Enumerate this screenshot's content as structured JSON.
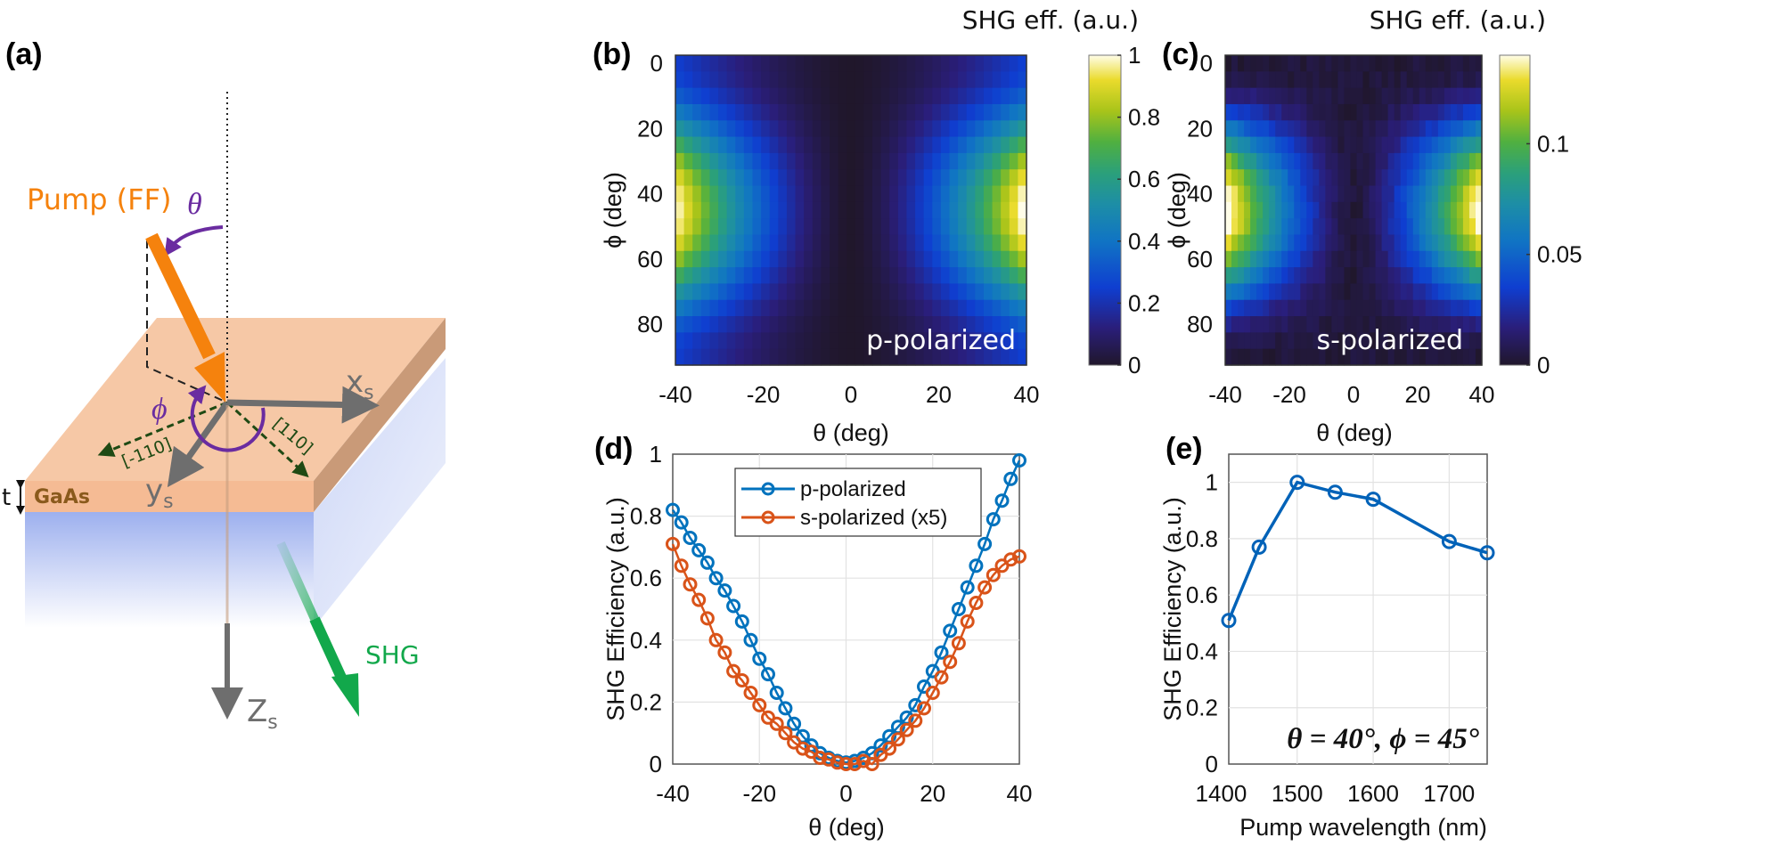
{
  "figure": {
    "panel_labels": [
      "(a)",
      "(b)",
      "(c)",
      "(d)",
      "(e)"
    ]
  },
  "diagram": {
    "pump_label": "Pump (FF)",
    "theta_symbol": "θ",
    "phi_symbol": "ϕ",
    "x_axis": "x",
    "x_sub": "s",
    "y_axis": "y",
    "y_sub": "s",
    "z_axis": "Z",
    "z_sub": "s",
    "dir_110": "[110]",
    "dir_m110": "[-110]",
    "material": "GaAs",
    "thickness": "t",
    "shg_label": "SHG",
    "colors": {
      "pump": "#f5820d",
      "shg": "#12a84b",
      "angle": "#6a2ca0",
      "axis": "#6e6e6e",
      "crystal": "#1f4a14",
      "slab_top": "#f6c8a6",
      "slab_side": "#c99a78",
      "substrate": "#a9b9ee"
    }
  },
  "chart_data": [
    {
      "id": "b",
      "type": "heatmap",
      "title": "",
      "overlay_label": "p-polarized",
      "xlabel": "θ (deg)",
      "ylabel": "ϕ (deg)",
      "xlim": [
        -40,
        40
      ],
      "ylim": [
        0,
        90
      ],
      "xticks": [
        "-40",
        "-20",
        "0",
        "20",
        "40"
      ],
      "yticks": [
        "0",
        "20",
        "40",
        "60",
        "80"
      ],
      "colorbar": {
        "title": "SHG eff. (a.u.)",
        "range": [
          0,
          1
        ],
        "ticks": [
          "0",
          "0.2",
          "0.4",
          "0.6",
          "0.8",
          "1"
        ],
        "colormap": "parula"
      },
      "grid_x_step": 2,
      "grid_y_step": 5,
      "model": "max 1.0 at θ=±40°, ϕ≈45°; ~0 at θ=0; ~0.25 at ϕ=0/90 edges",
      "peak": {
        "theta": 40,
        "phi": 45,
        "value": 1.0
      }
    },
    {
      "id": "c",
      "type": "heatmap",
      "overlay_label": "s-polarized",
      "xlabel": "θ (deg)",
      "ylabel": "ϕ (deg)",
      "xlim": [
        -40,
        40
      ],
      "ylim": [
        0,
        90
      ],
      "xticks": [
        "-40",
        "-20",
        "0",
        "20",
        "40"
      ],
      "yticks": [
        "0",
        "20",
        "40",
        "60",
        "80"
      ],
      "colorbar": {
        "title": "SHG eff. (a.u.)",
        "range": [
          0,
          0.14
        ],
        "ticks": [
          "0",
          "0.05",
          "0.1"
        ],
        "colormap": "parula"
      },
      "grid_x_step": 2,
      "grid_y_step": 5,
      "model": "max ~0.14 at θ=±40°, ϕ≈45°; ~0 at θ=0 and at ϕ=0/90",
      "peak": {
        "theta": -40,
        "phi": 45,
        "value": 0.14
      }
    },
    {
      "id": "d",
      "type": "line",
      "xlabel": "θ (deg)",
      "ylabel": "SHG Efficiency (a.u.)",
      "xlim": [
        -40,
        40
      ],
      "ylim": [
        0,
        1
      ],
      "xticks": [
        "-40",
        "-20",
        "0",
        "20",
        "40"
      ],
      "yticks": [
        "0",
        "0.2",
        "0.4",
        "0.6",
        "0.8",
        "1"
      ],
      "grid": true,
      "legend": "top-center",
      "x": [
        -40,
        -38,
        -36,
        -34,
        -32,
        -30,
        -28,
        -26,
        -24,
        -22,
        -20,
        -18,
        -16,
        -14,
        -12,
        -10,
        -8,
        -6,
        -4,
        -2,
        0,
        2,
        4,
        6,
        8,
        10,
        12,
        14,
        16,
        18,
        20,
        22,
        24,
        26,
        28,
        30,
        32,
        34,
        36,
        38,
        40
      ],
      "series": [
        {
          "name": "p-polarized",
          "color": "#0072bd",
          "values": [
            0.82,
            0.78,
            0.73,
            0.69,
            0.65,
            0.6,
            0.56,
            0.51,
            0.46,
            0.4,
            0.34,
            0.29,
            0.23,
            0.18,
            0.13,
            0.09,
            0.06,
            0.035,
            0.02,
            0.01,
            0.005,
            0.01,
            0.02,
            0.035,
            0.06,
            0.09,
            0.12,
            0.15,
            0.19,
            0.25,
            0.3,
            0.36,
            0.43,
            0.5,
            0.57,
            0.64,
            0.71,
            0.79,
            0.85,
            0.92,
            0.98
          ]
        },
        {
          "name": "s-polarized (x5)",
          "color": "#d95319",
          "values": [
            0.71,
            0.64,
            0.58,
            0.53,
            0.47,
            0.4,
            0.36,
            0.3,
            0.27,
            0.23,
            0.19,
            0.15,
            0.13,
            0.1,
            0.07,
            0.05,
            0.04,
            0.02,
            0.015,
            0.005,
            0.0,
            0.0,
            0.01,
            0.0,
            0.03,
            0.05,
            0.08,
            0.11,
            0.14,
            0.18,
            0.23,
            0.28,
            0.33,
            0.39,
            0.46,
            0.52,
            0.57,
            0.61,
            0.64,
            0.66,
            0.67
          ]
        }
      ]
    },
    {
      "id": "e",
      "type": "line",
      "xlabel": "Pump wavelength (nm)",
      "ylabel": "SHG Efficiency (a.u.)",
      "xlim": [
        1410,
        1750
      ],
      "ylim": [
        0,
        1.1
      ],
      "xticks": [
        "1400",
        "1500",
        "1600",
        "1700"
      ],
      "xtick_values": [
        1400,
        1500,
        1600,
        1700
      ],
      "yticks": [
        "0",
        "0.2",
        "0.4",
        "0.6",
        "0.8",
        "1"
      ],
      "grid": true,
      "annotation": "θ = 40°, ϕ = 45°",
      "x": [
        1410,
        1450,
        1500,
        1550,
        1600,
        1700,
        1750
      ],
      "series": [
        {
          "name": "SHG efficiency",
          "color": "#0062b8",
          "values": [
            0.51,
            0.77,
            1.0,
            0.965,
            0.94,
            0.79,
            0.75
          ]
        }
      ]
    }
  ]
}
